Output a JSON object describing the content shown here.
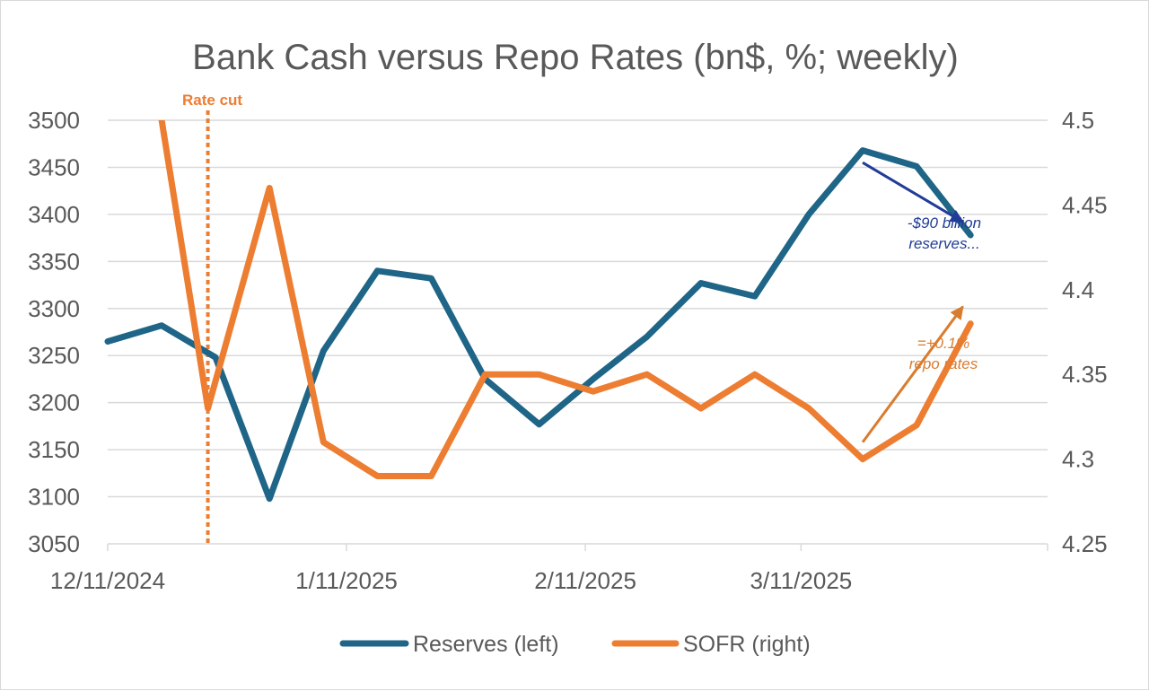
{
  "chart_data": {
    "type": "line",
    "title": "Bank Cash versus Repo Rates (bn$, %; weekly)",
    "x": [
      "12/11/2024",
      "12/18/2024",
      "12/25/2024",
      "1/1/2025",
      "1/8/2025",
      "1/15/2025",
      "1/22/2025",
      "1/29/2025",
      "2/5/2025",
      "2/12/2025",
      "2/19/2025",
      "2/26/2025",
      "3/5/2025",
      "3/12/2025",
      "3/19/2025",
      "3/26/2025",
      "4/2/2025"
    ],
    "x_tick_labels": [
      "12/11/2024",
      "1/11/2025",
      "2/11/2025",
      "3/11/2025"
    ],
    "x_tick_positions": [
      "12/11/2024",
      "1/11/2025",
      "2/11/2025",
      "3/11/2025"
    ],
    "x_range": [
      "12/11/2024",
      "4/12/2025"
    ],
    "y_left": {
      "label": "",
      "ylim": [
        3050,
        3500
      ],
      "ticks": [
        "3050",
        "3100",
        "3150",
        "3200",
        "3250",
        "3300",
        "3350",
        "3400",
        "3450",
        "3500"
      ]
    },
    "y_right": {
      "label": "",
      "ylim": [
        4.25,
        4.5
      ],
      "ticks": [
        "4.25",
        "4.3",
        "4.35",
        "4.4",
        "4.45",
        "4.5"
      ]
    },
    "series": [
      {
        "name": "Reserves (left)",
        "axis": "left",
        "color": "#1f6587",
        "points": [
          [
            "12/11/2024",
            3265
          ],
          [
            "12/18/2024",
            3282
          ],
          [
            "12/25/2024",
            3248
          ],
          [
            "1/1/2025",
            3098
          ],
          [
            "1/8/2025",
            3255
          ],
          [
            "1/15/2025",
            3340
          ],
          [
            "1/22/2025",
            3332
          ],
          [
            "1/29/2025",
            3225
          ],
          [
            "2/5/2025",
            3177
          ],
          [
            "2/12/2025",
            3225
          ],
          [
            "2/19/2025",
            3270
          ],
          [
            "2/26/2025",
            3327
          ],
          [
            "3/5/2025",
            3313
          ],
          [
            "3/12/2025",
            3400
          ],
          [
            "3/19/2025",
            3468
          ],
          [
            "3/26/2025",
            3451
          ],
          [
            "4/2/2025",
            3378
          ]
        ]
      },
      {
        "name": "SOFR (right)",
        "axis": "right",
        "color": "#ed7d31",
        "points": [
          [
            "12/18/2024",
            4.5
          ],
          [
            "12/24/2024",
            4.33
          ],
          [
            "1/1/2025",
            4.46
          ],
          [
            "1/8/2025",
            4.31
          ],
          [
            "1/15/2025",
            4.29
          ],
          [
            "1/22/2025",
            4.29
          ],
          [
            "1/29/2025",
            4.35
          ],
          [
            "2/5/2025",
            4.35
          ],
          [
            "2/12/2025",
            4.34
          ],
          [
            "2/19/2025",
            4.35
          ],
          [
            "2/26/2025",
            4.33
          ],
          [
            "3/5/2025",
            4.35
          ],
          [
            "3/12/2025",
            4.33
          ],
          [
            "3/19/2025",
            4.3
          ],
          [
            "3/26/2025",
            4.32
          ],
          [
            "4/2/2025",
            4.38
          ]
        ]
      }
    ],
    "vertical_marker": {
      "date": "12/24/2024",
      "label": "Rate cut",
      "color": "#ed7d31"
    },
    "annotations": [
      {
        "id": "reserves",
        "lines": [
          "-$90 billion",
          "reserves..."
        ],
        "color": "#203c97",
        "arrow_from": [
          "3/19/2025",
          3455
        ],
        "arrow_to": [
          "4/1/2025",
          3392
        ]
      },
      {
        "id": "repo",
        "lines": [
          "=+0.1%",
          "repo rates"
        ],
        "color": "#d97c2f",
        "arrow_from": [
          "3/19/2025",
          4.31
        ],
        "arrow_to": [
          "4/1/2025",
          4.39
        ]
      }
    ],
    "legend_position": "bottom",
    "grid": true
  }
}
